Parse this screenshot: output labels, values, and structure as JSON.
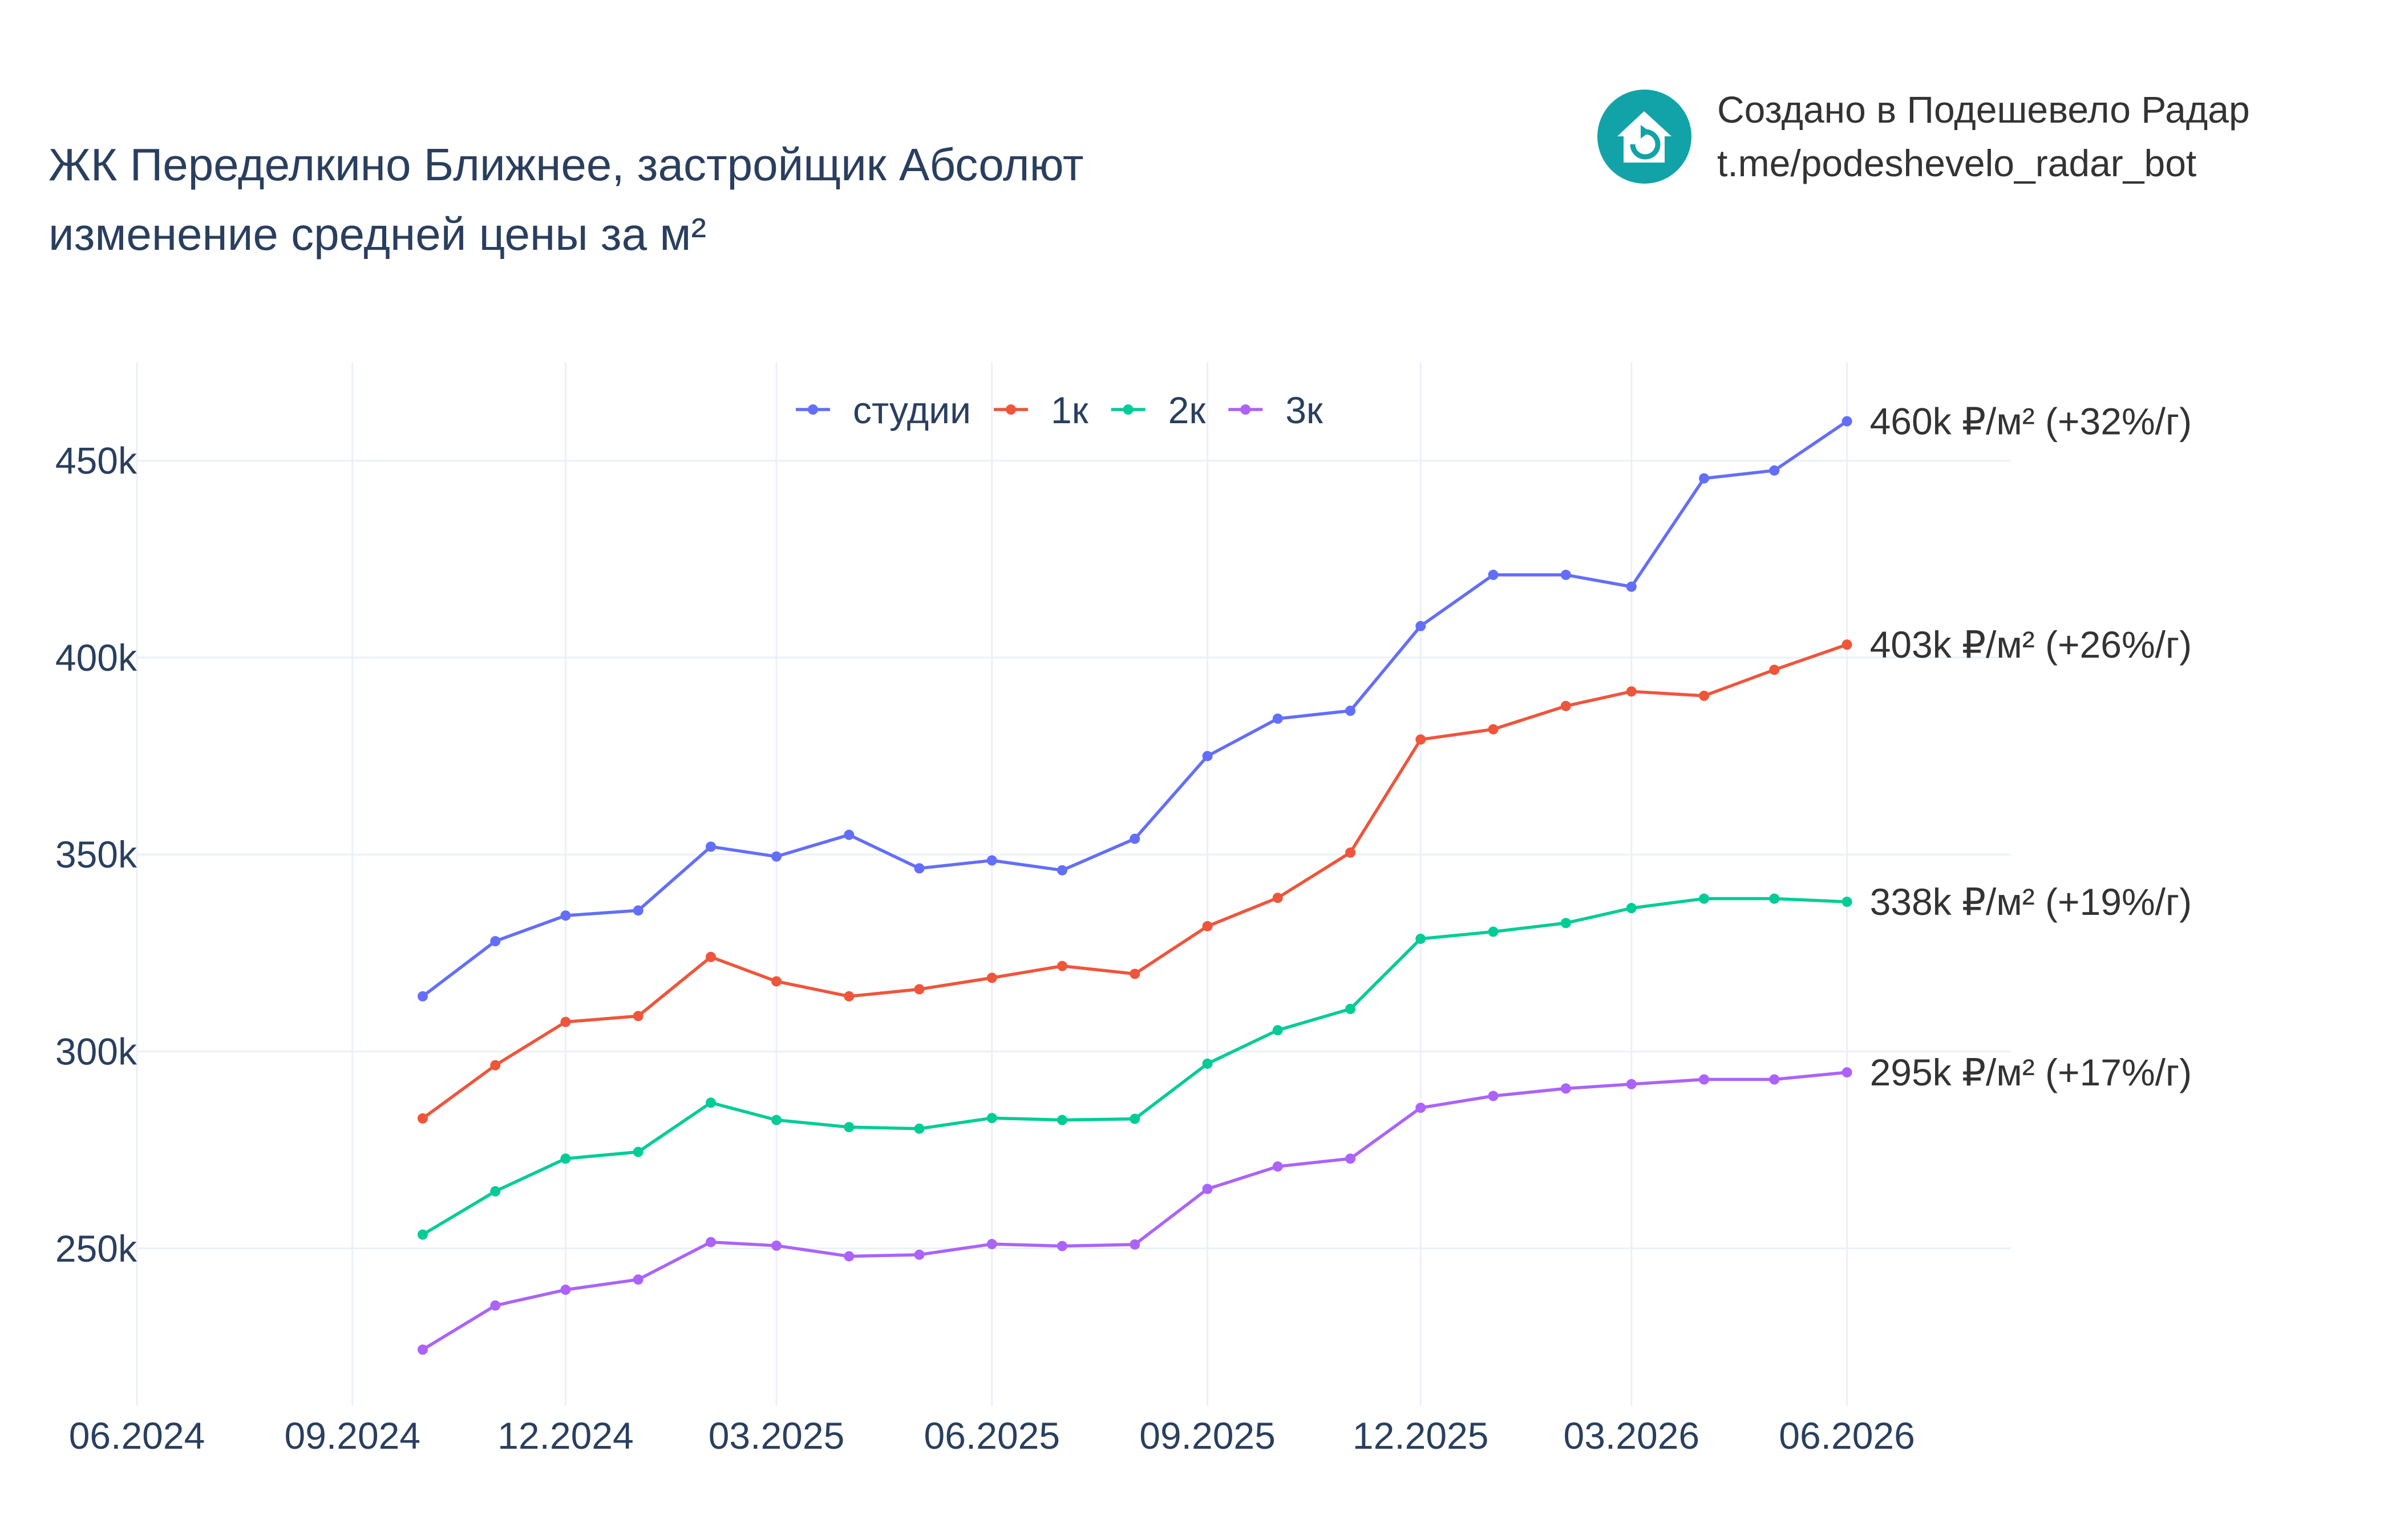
{
  "title": {
    "line1": "ЖК Переделкино Ближнее, застройщик Абсолют",
    "line2": "изменение средней цены за м²"
  },
  "credit": {
    "line1": "Создано в Подешевело Радар",
    "line2": "t.me/podeshevelo_radar_bot",
    "logo": "house-with-arrow-icon"
  },
  "colors": {
    "studio": "#636efa",
    "one_room": "#ef553b",
    "two_room": "#00cc96",
    "three_room": "#ab63fa",
    "axis_text": "#2a3f5f",
    "grid": "#ebf0f8",
    "logo": "#12a3a8"
  },
  "chart_data": {
    "type": "line",
    "title": "ЖК Переделкино Ближнее, застройщик Абсолют — изменение средней цены за м²",
    "xlabel": "",
    "ylabel": "",
    "grid": true,
    "legend_position": "top-center",
    "x": [
      "2024-10",
      "2024-11",
      "2024-12",
      "2025-01",
      "2025-02",
      "2025-03",
      "2025-04",
      "2025-05",
      "2025-06",
      "2025-07",
      "2025-08",
      "2025-09",
      "2025-10",
      "2025-11",
      "2025-12",
      "2026-01",
      "2026-02",
      "2026-03",
      "2026-04",
      "2026-05",
      "2026-06"
    ],
    "xlim": [
      "2024-06-01",
      "2026-08-10"
    ],
    "x_ticks": [
      {
        "date": "2024-06-01",
        "label": "06.2024"
      },
      {
        "date": "2024-09-01",
        "label": "09.2024"
      },
      {
        "date": "2024-12-01",
        "label": "12.2024"
      },
      {
        "date": "2025-03-01",
        "label": "03.2025"
      },
      {
        "date": "2025-06-01",
        "label": "06.2025"
      },
      {
        "date": "2025-09-01",
        "label": "09.2025"
      },
      {
        "date": "2025-12-01",
        "label": "12.2025"
      },
      {
        "date": "2026-03-01",
        "label": "03.2026"
      },
      {
        "date": "2026-06-01",
        "label": "06.2026"
      }
    ],
    "ylim": [
      210000,
      475000
    ],
    "y_ticks": [
      {
        "value": 250000,
        "label": "250k"
      },
      {
        "value": 300000,
        "label": "300k"
      },
      {
        "value": 350000,
        "label": "350k"
      },
      {
        "value": 400000,
        "label": "400k"
      },
      {
        "value": 450000,
        "label": "450k"
      }
    ],
    "series": [
      {
        "name": "студии",
        "color": "#636efa",
        "end_label": "460k ₽/м² (+32%/г)",
        "values": [
          314000,
          328000,
          334500,
          335800,
          352000,
          349500,
          355000,
          346500,
          348500,
          346000,
          354000,
          375000,
          384500,
          386500,
          408000,
          421000,
          421000,
          418000,
          445500,
          447500,
          460000
        ]
      },
      {
        "name": "1к",
        "color": "#ef553b",
        "end_label": "403k ₽/м² (+26%/г)",
        "values": [
          283000,
          296500,
          307500,
          309000,
          324000,
          317800,
          314000,
          315800,
          318700,
          321700,
          319700,
          331800,
          339000,
          350500,
          379200,
          381800,
          387700,
          391400,
          390300,
          396900,
          403300
        ]
      },
      {
        "name": "2к",
        "color": "#00cc96",
        "end_label": "338k ₽/м² (+19%/г)",
        "values": [
          253500,
          264500,
          272800,
          274500,
          287000,
          282600,
          280800,
          280400,
          283100,
          282600,
          282900,
          296900,
          305400,
          310800,
          328600,
          330400,
          332600,
          336400,
          338800,
          338800,
          338000
        ]
      },
      {
        "name": "3к",
        "color": "#ab63fa",
        "end_label": "295k ₽/м² (+17%/г)",
        "values": [
          224300,
          235500,
          239500,
          242100,
          251600,
          250700,
          248000,
          248400,
          251100,
          250600,
          251000,
          265100,
          270800,
          272800,
          285700,
          288700,
          290600,
          291700,
          292900,
          292900,
          294700
        ]
      }
    ]
  }
}
